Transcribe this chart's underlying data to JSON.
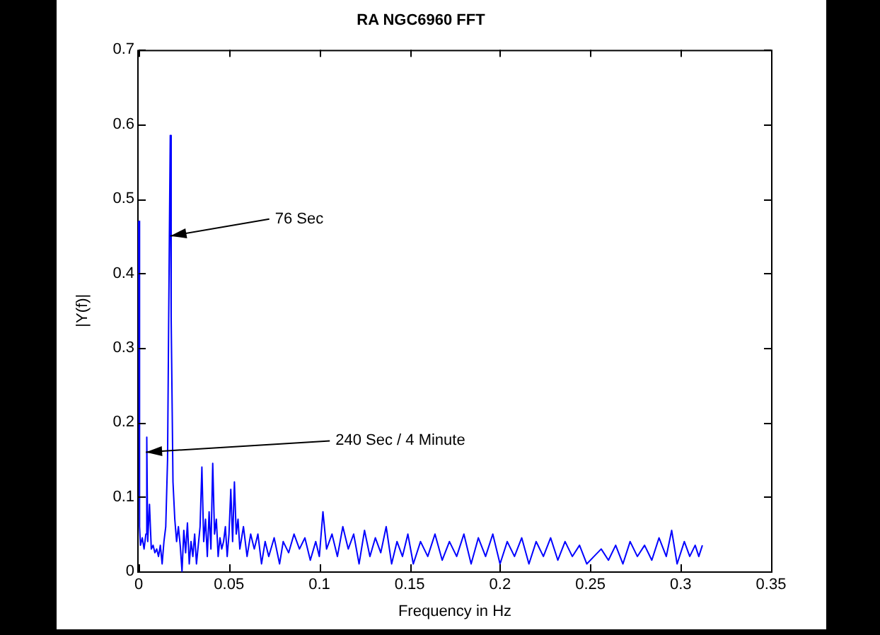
{
  "chart_data": {
    "type": "line",
    "title": "RA NGC6960 FFT",
    "xlabel": "Frequency in Hz",
    "ylabel": "|Y(f)|",
    "x": [
      0,
      0.0005,
      0.001,
      0.002,
      0.003,
      0.004,
      0.0045,
      0.005,
      0.006,
      0.007,
      0.008,
      0.009,
      0.01,
      0.011,
      0.012,
      0.013,
      0.014,
      0.015,
      0.016,
      0.017,
      0.0175,
      0.018,
      0.019,
      0.02,
      0.021,
      0.022,
      0.023,
      0.024,
      0.025,
      0.026,
      0.027,
      0.028,
      0.029,
      0.03,
      0.031,
      0.032,
      0.033,
      0.034,
      0.035,
      0.036,
      0.037,
      0.038,
      0.039,
      0.04,
      0.041,
      0.042,
      0.043,
      0.044,
      0.045,
      0.046,
      0.047,
      0.048,
      0.049,
      0.05,
      0.051,
      0.052,
      0.053,
      0.054,
      0.055,
      0.056,
      0.058,
      0.06,
      0.062,
      0.064,
      0.066,
      0.068,
      0.07,
      0.072,
      0.075,
      0.078,
      0.08,
      0.083,
      0.086,
      0.089,
      0.092,
      0.095,
      0.098,
      0.1,
      0.102,
      0.104,
      0.107,
      0.11,
      0.113,
      0.116,
      0.119,
      0.122,
      0.125,
      0.128,
      0.131,
      0.134,
      0.137,
      0.14,
      0.143,
      0.146,
      0.149,
      0.152,
      0.156,
      0.16,
      0.164,
      0.168,
      0.172,
      0.176,
      0.18,
      0.184,
      0.188,
      0.192,
      0.196,
      0.2,
      0.204,
      0.208,
      0.212,
      0.216,
      0.22,
      0.224,
      0.228,
      0.232,
      0.236,
      0.24,
      0.244,
      0.248,
      0.252,
      0.256,
      0.26,
      0.264,
      0.268,
      0.272,
      0.276,
      0.28,
      0.284,
      0.288,
      0.292,
      0.295,
      0.298,
      0.302,
      0.305,
      0.308,
      0.31,
      0.312
    ],
    "series": [
      {
        "color": "#0000ff",
        "values": [
          0.47,
          0.06,
          0.035,
          0.045,
          0.03,
          0.05,
          0.18,
          0.04,
          0.09,
          0.03,
          0.035,
          0.025,
          0.03,
          0.02,
          0.035,
          0.01,
          0.04,
          0.06,
          0.15,
          0.45,
          0.585,
          0.34,
          0.12,
          0.07,
          0.04,
          0.06,
          0.035,
          0,
          0.055,
          0.025,
          0.065,
          0.01,
          0.04,
          0.02,
          0.05,
          0.01,
          0.035,
          0.06,
          0.14,
          0.04,
          0.07,
          0.02,
          0.08,
          0.03,
          0.145,
          0.05,
          0.07,
          0.02,
          0.045,
          0.03,
          0.04,
          0.06,
          0.02,
          0.05,
          0.11,
          0.04,
          0.12,
          0.05,
          0.07,
          0.03,
          0.06,
          0.02,
          0.05,
          0.03,
          0.05,
          0.01,
          0.04,
          0.02,
          0.045,
          0.01,
          0.04,
          0.025,
          0.05,
          0.03,
          0.045,
          0.015,
          0.04,
          0.02,
          0.08,
          0.03,
          0.05,
          0.02,
          0.06,
          0.03,
          0.05,
          0.01,
          0.055,
          0.02,
          0.045,
          0.025,
          0.06,
          0.01,
          0.04,
          0.02,
          0.05,
          0.01,
          0.04,
          0.02,
          0.05,
          0.015,
          0.04,
          0.02,
          0.05,
          0.01,
          0.045,
          0.02,
          0.05,
          0.01,
          0.04,
          0.02,
          0.045,
          0.01,
          0.04,
          0.02,
          0.045,
          0.015,
          0.04,
          0.02,
          0.035,
          0.01,
          0.02,
          0.03,
          0.015,
          0.035,
          0.01,
          0.04,
          0.02,
          0.035,
          0.015,
          0.045,
          0.02,
          0.055,
          0.01,
          0.04,
          0.02,
          0.035,
          0.02,
          0.035
        ]
      }
    ],
    "xlim": [
      0,
      0.35
    ],
    "xticks": [
      0,
      0.05,
      0.1,
      0.15,
      0.2,
      0.25,
      0.3,
      0.35
    ],
    "ylim": [
      0,
      0.7
    ],
    "yticks": [
      0,
      0.1,
      0.2,
      0.3,
      0.4,
      0.5,
      0.6,
      0.7
    ],
    "grid": false,
    "legend": false,
    "marker": "none",
    "line_style": "solid",
    "annotations": [
      {
        "text": "76 Sec",
        "x": 0.0175,
        "y": 0.45
      },
      {
        "text": "240 Sec / 4 Minute",
        "x": 0.004,
        "y": 0.16
      }
    ]
  }
}
